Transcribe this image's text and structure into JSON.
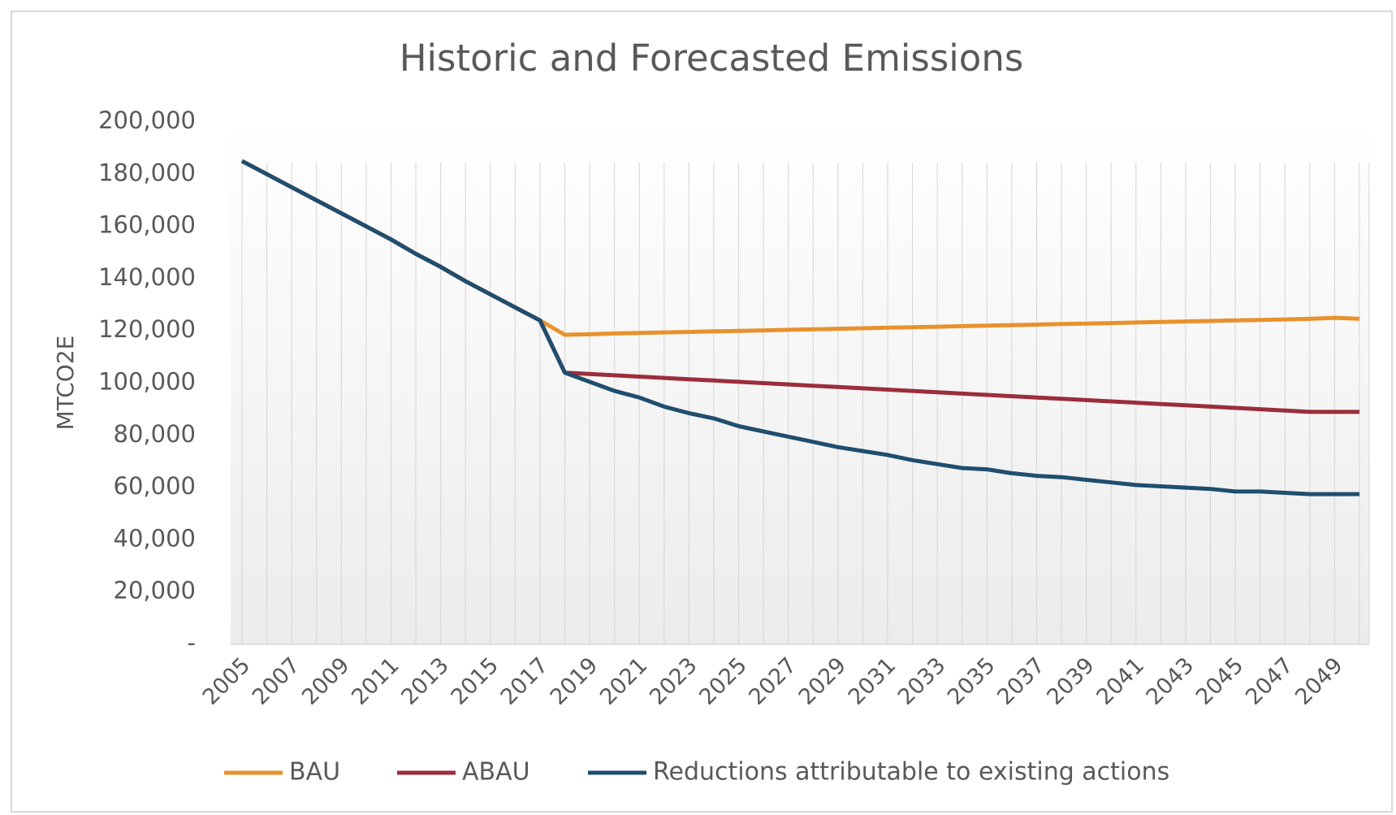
{
  "chart_data": {
    "type": "line",
    "title": "Historic and Forecasted Emissions",
    "y_label": "MTCO2E",
    "categories": [
      "2005",
      null,
      "2007",
      null,
      "2009",
      null,
      "2011",
      null,
      "2013",
      null,
      "2015",
      null,
      "2017",
      null,
      "2019",
      null,
      "2021",
      null,
      "2023",
      null,
      "2025",
      null,
      "2027",
      null,
      "2029",
      null,
      "2031",
      null,
      "2033",
      null,
      "2035",
      null,
      "2037",
      null,
      "2039",
      null,
      "2041",
      null,
      "2043",
      null,
      "2045",
      null,
      "2047",
      null,
      "2049",
      null
    ],
    "series": [
      {
        "name": "BAU",
        "color": "#e8912d",
        "values": [
          185000,
          180000,
          175000,
          170000,
          165000,
          160000,
          155000,
          149500,
          144500,
          139000,
          134000,
          129000,
          124000,
          118500,
          118700,
          119000,
          119200,
          119400,
          119600,
          119800,
          120000,
          120200,
          120400,
          120600,
          120800,
          121000,
          121200,
          121400,
          121600,
          121800,
          122000,
          122200,
          122400,
          122600,
          122800,
          123000,
          123200,
          123400,
          123600,
          123800,
          124000,
          124200,
          124400,
          124600,
          125000,
          124600
        ]
      },
      {
        "name": "ABAU",
        "color": "#9b2d3c",
        "values": [
          185000,
          180000,
          175000,
          170000,
          165000,
          160000,
          155000,
          149500,
          144500,
          139000,
          134000,
          129000,
          124000,
          104000,
          103500,
          103000,
          102500,
          102000,
          101500,
          101000,
          100500,
          100000,
          99500,
          99000,
          98500,
          98000,
          97500,
          97000,
          96500,
          96000,
          95500,
          95000,
          94500,
          94000,
          93500,
          93000,
          92500,
          92000,
          91500,
          91000,
          90500,
          90000,
          89500,
          89000,
          89000,
          89000
        ]
      },
      {
        "name": "Reductions attributable to existing actions",
        "color": "#1f4e6e",
        "values": [
          185000,
          180000,
          175000,
          170000,
          165000,
          160000,
          155000,
          149500,
          144500,
          139000,
          134000,
          129000,
          124000,
          104000,
          100500,
          97000,
          94500,
          91000,
          88500,
          86500,
          83500,
          81500,
          79500,
          77500,
          75500,
          74000,
          72500,
          70500,
          69000,
          67500,
          67000,
          65500,
          64500,
          64000,
          63000,
          62000,
          61000,
          60500,
          60000,
          59500,
          58500,
          58500,
          58000,
          57500,
          57500,
          57500
        ]
      }
    ],
    "ylim": [
      0,
      200000
    ],
    "yticks": [
      {
        "value": 0,
        "label": "-"
      },
      {
        "value": 20000,
        "label": "20,000"
      },
      {
        "value": 40000,
        "label": "40,000"
      },
      {
        "value": 60000,
        "label": "60,000"
      },
      {
        "value": 80000,
        "label": "80,000"
      },
      {
        "value": 100000,
        "label": "100,000"
      },
      {
        "value": 120000,
        "label": "120,000"
      },
      {
        "value": 140000,
        "label": "140,000"
      },
      {
        "value": 160000,
        "label": "160,000"
      },
      {
        "value": 180000,
        "label": "180,000"
      },
      {
        "value": 200000,
        "label": "200,000"
      }
    ],
    "legend": "bottom"
  }
}
